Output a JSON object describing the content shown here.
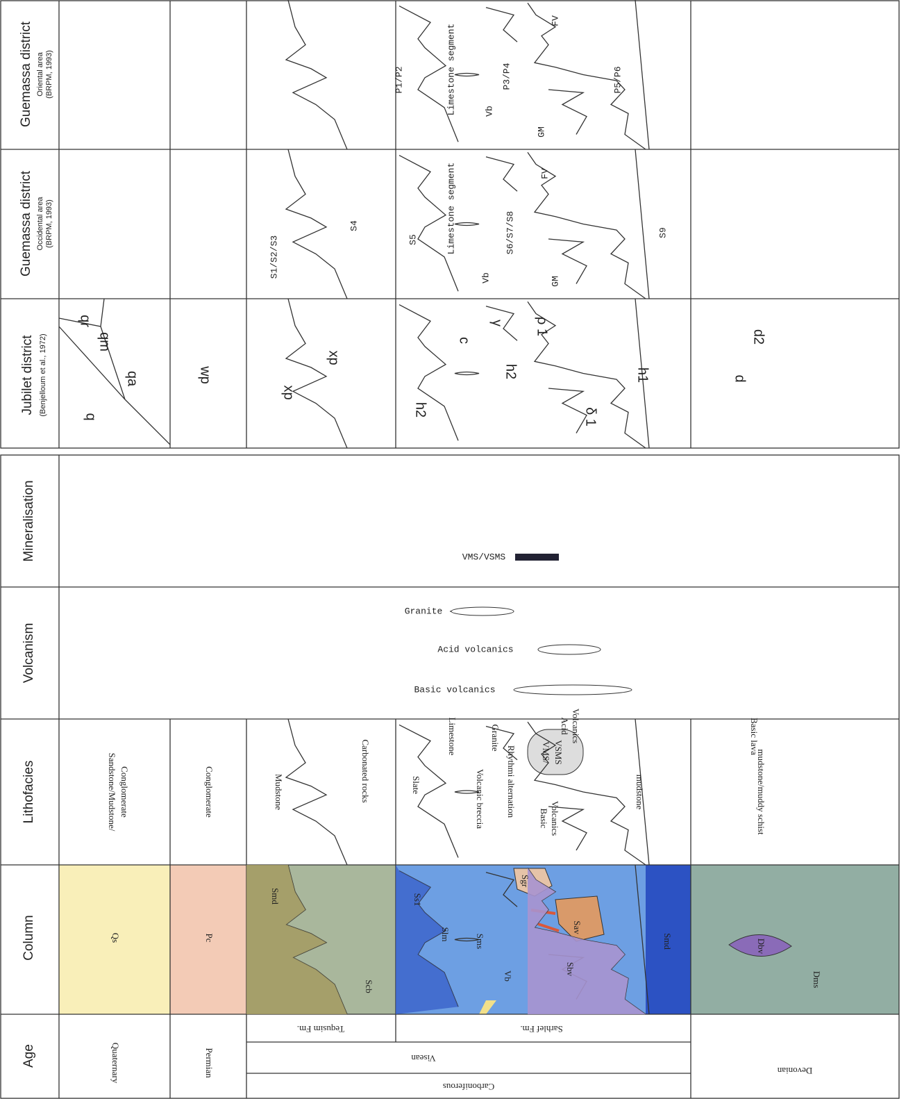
{
  "headers": {
    "age": "Age",
    "column": "Column",
    "lithofacies": "Lithofacies",
    "volcanism": "Volcanism",
    "mineralisation": "Mineralisation",
    "jubilet": {
      "title": "Jubilet district",
      "source": "(Benjelloum et al., 1972)"
    },
    "guemassa_occidental": {
      "title": "Guemassa district",
      "area": "Occidental area",
      "source": "(BRPM, 1993)"
    },
    "guemassa_oriental": {
      "title": "Guemassa district",
      "area": "Oriental area",
      "source": "(BRPM, 1993)"
    }
  },
  "age": {
    "quaternary": "Quaternary",
    "permian": "Permian",
    "carboniferous": "Carboniferous",
    "visean": "Visean",
    "tequsim": "Tequsim Fm.",
    "sarhlef": "Sarhlef Fm.",
    "devonian": "Devonian"
  },
  "column": [
    "Qs",
    "Pc",
    "Smd",
    "Scb",
    "Ss1",
    "Slm",
    "Sms",
    "Sgr",
    "Sav",
    "Vb",
    "Sbv",
    "Smd",
    "Dms",
    "Dbv"
  ],
  "lithofacies": [
    "Sandstone/Mudstone/",
    "Conglomerate",
    "Conglomerate",
    "Mudstone",
    "Carbonated rocks",
    "Slate",
    "Limestone",
    "Volcanic breccia",
    "Granite",
    "Rhythmi alternation",
    "VMS/",
    "VSMS",
    "Acid",
    "Volcanics",
    "Basic",
    "Volcanics",
    "mudstone",
    "mudstone/muddy schist",
    "Basic lava"
  ],
  "volcanism": [
    "Granite",
    "Acid volcanics",
    "Basic volcanics"
  ],
  "mineralisation": "VMS/VSMS",
  "jubilet": [
    "q",
    "qr",
    "qm",
    "qa",
    "wp",
    "xp",
    "xp",
    "h2",
    "c",
    "h2",
    "γ",
    "ρ 1",
    "δ 1",
    "h1",
    "d",
    "d2"
  ],
  "occidental": [
    "S1/S2/S3",
    "S4",
    "S5",
    "Limestone segment",
    "S6/S7/S8",
    "Vb",
    "GM",
    "FV",
    "S9"
  ],
  "oriental": [
    "P1/P2",
    "Limestone segment",
    "P3/P4",
    "Vb",
    "GM",
    "FV",
    "P5/P6"
  ]
}
